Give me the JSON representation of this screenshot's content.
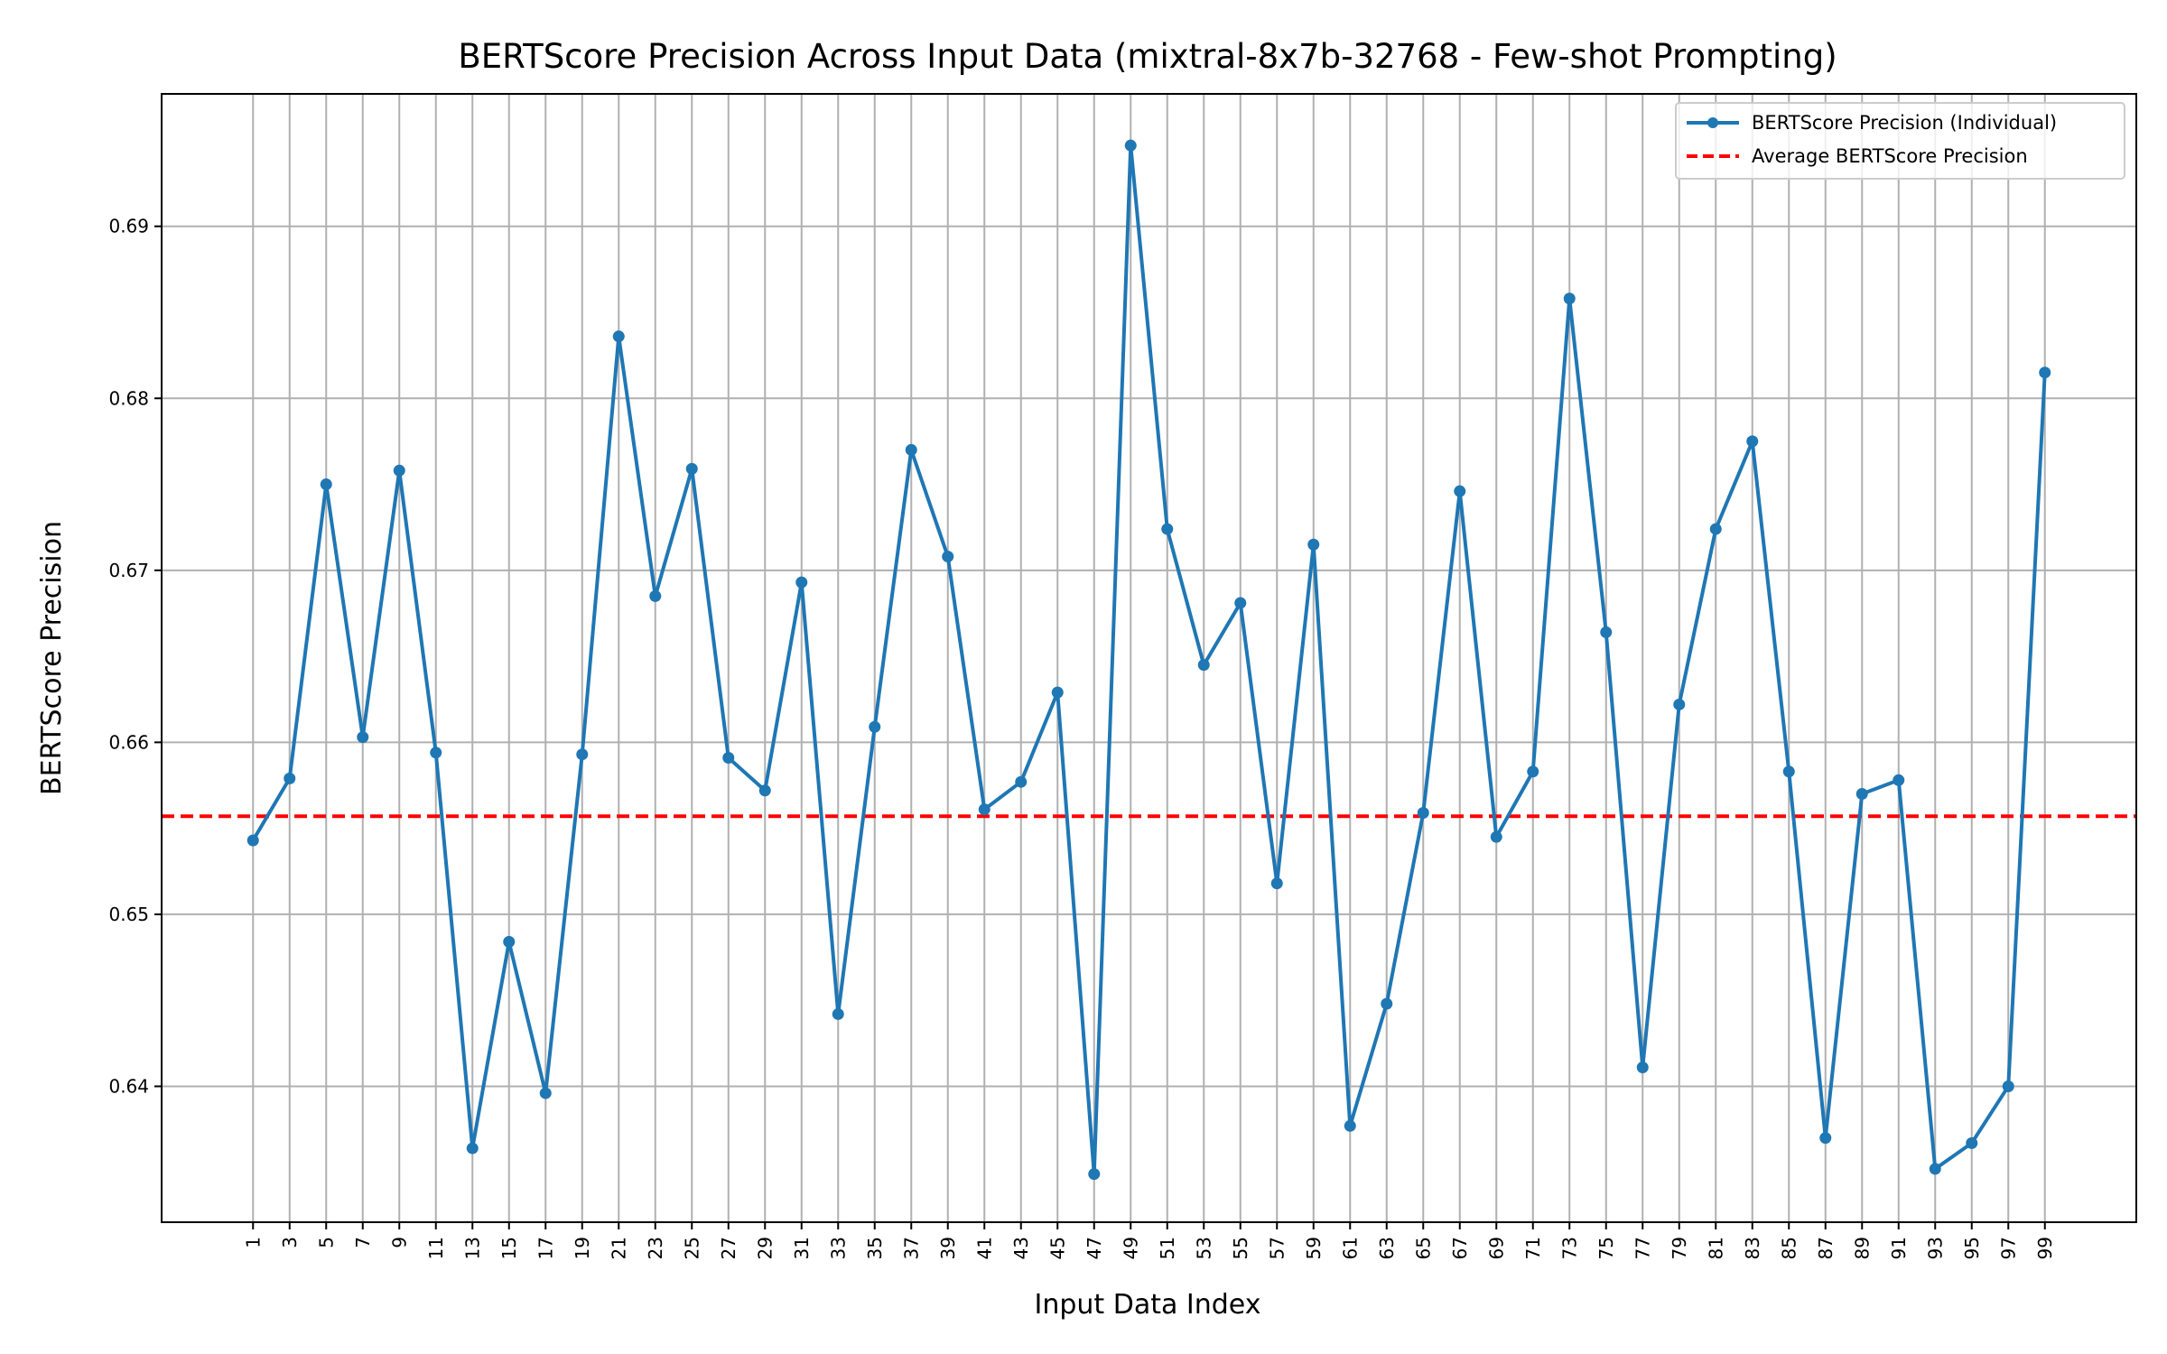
{
  "chart_data": {
    "type": "line",
    "title": "BERTScore Precision Across Input Data (mixtral-8x7b-32768 - Few-shot Prompting)",
    "xlabel": "Input Data Index",
    "ylabel": "BERTScore Precision",
    "x": [
      1,
      3,
      5,
      7,
      9,
      11,
      13,
      15,
      17,
      19,
      21,
      23,
      25,
      27,
      29,
      31,
      33,
      35,
      37,
      39,
      41,
      43,
      45,
      47,
      49,
      51,
      53,
      55,
      57,
      59,
      61,
      63,
      65,
      67,
      69,
      71,
      73,
      75,
      77,
      79,
      81,
      83,
      85,
      87,
      89,
      91,
      93,
      95,
      97,
      99
    ],
    "x_ticks": [
      "1",
      "3",
      "5",
      "7",
      "9",
      "11",
      "13",
      "15",
      "17",
      "19",
      "21",
      "23",
      "25",
      "27",
      "29",
      "31",
      "33",
      "35",
      "37",
      "39",
      "41",
      "43",
      "45",
      "47",
      "49",
      "51",
      "53",
      "55",
      "57",
      "59",
      "61",
      "63",
      "65",
      "67",
      "69",
      "71",
      "73",
      "75",
      "77",
      "79",
      "81",
      "83",
      "85",
      "87",
      "89",
      "91",
      "93",
      "95",
      "97",
      "99"
    ],
    "xlim": [
      -4.0,
      104.0
    ],
    "ylim": [
      0.6321,
      0.6977
    ],
    "y_ticks": [
      "0.64",
      "0.65",
      "0.66",
      "0.67",
      "0.68",
      "0.69"
    ],
    "y_tick_values": [
      0.64,
      0.65,
      0.66,
      0.67,
      0.68,
      0.69
    ],
    "grid": true,
    "legend_position": "top-right",
    "series": [
      {
        "name": "BERTScore Precision (Individual)",
        "color": "#1f77b4",
        "style": "solid-marker",
        "values": [
          0.6543,
          0.6579,
          0.675,
          0.6603,
          0.6758,
          0.6594,
          0.6364,
          0.6484,
          0.6396,
          0.6593,
          0.6836,
          0.6685,
          0.6759,
          0.6591,
          0.6572,
          0.6693,
          0.6442,
          0.6609,
          0.677,
          0.6708,
          0.6561,
          0.6577,
          0.6629,
          0.6349,
          0.6947,
          0.6724,
          0.6645,
          0.6681,
          0.6518,
          0.6715,
          0.6377,
          0.6448,
          0.6559,
          0.6746,
          0.6545,
          0.6583,
          0.6858,
          0.6664,
          0.6411,
          0.6622,
          0.6724,
          0.6775,
          0.6583,
          0.637,
          0.657,
          0.6578,
          0.6352,
          0.6367,
          0.64,
          0.6815
        ]
      },
      {
        "name": "Average BERTScore Precision",
        "color": "#ff0000",
        "style": "dashed",
        "value": 0.6557
      }
    ]
  }
}
